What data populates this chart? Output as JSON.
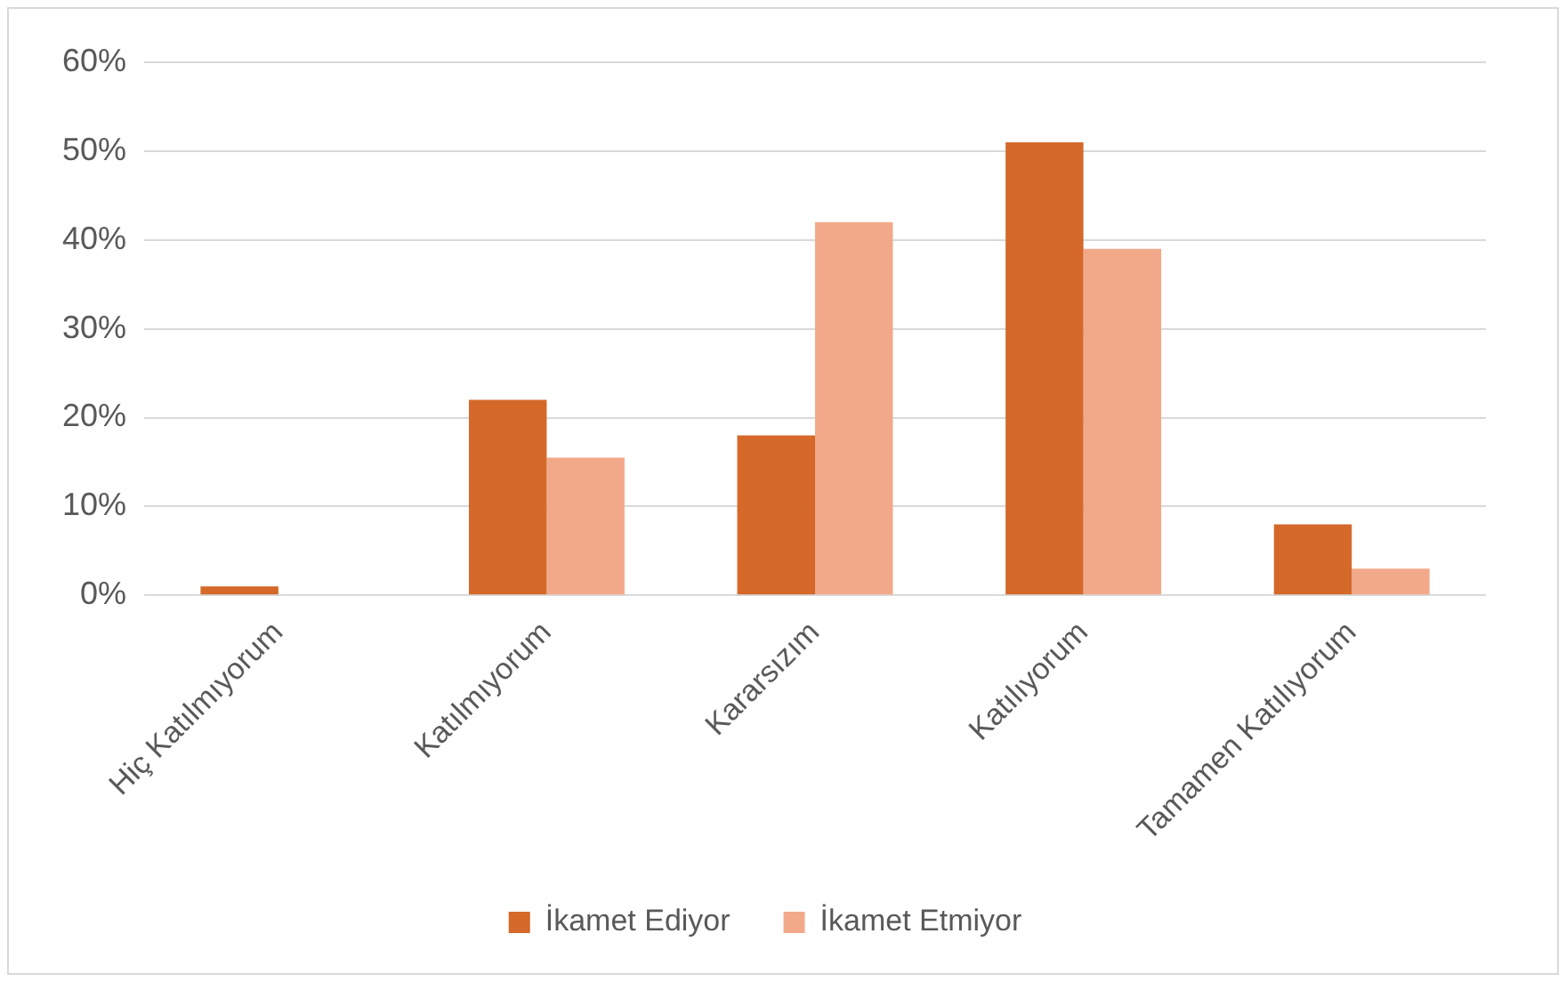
{
  "chart_data": {
    "type": "bar",
    "categories": [
      "Hiç Katılmıyorum",
      "Katılmıyorum",
      "Kararsızım",
      "Katılıyorum",
      "Tamamen Katılıyorum"
    ],
    "series": [
      {
        "name": "İkamet Ediyor",
        "color": "#d4692a",
        "values": [
          1,
          22,
          18,
          51,
          8
        ]
      },
      {
        "name": "İkamet Etmiyor",
        "color": "#f2a98a",
        "values": [
          0,
          15.5,
          42,
          39,
          3
        ]
      }
    ],
    "ylim": [
      0,
      60
    ],
    "yticks": [
      {
        "value": 0,
        "label": "0%"
      },
      {
        "value": 10,
        "label": "10%"
      },
      {
        "value": 20,
        "label": "20%"
      },
      {
        "value": 30,
        "label": "30%"
      },
      {
        "value": 40,
        "label": "40%"
      },
      {
        "value": 50,
        "label": "50%"
      },
      {
        "value": 60,
        "label": "60%"
      }
    ],
    "grid": "y",
    "legend": "bottom"
  }
}
